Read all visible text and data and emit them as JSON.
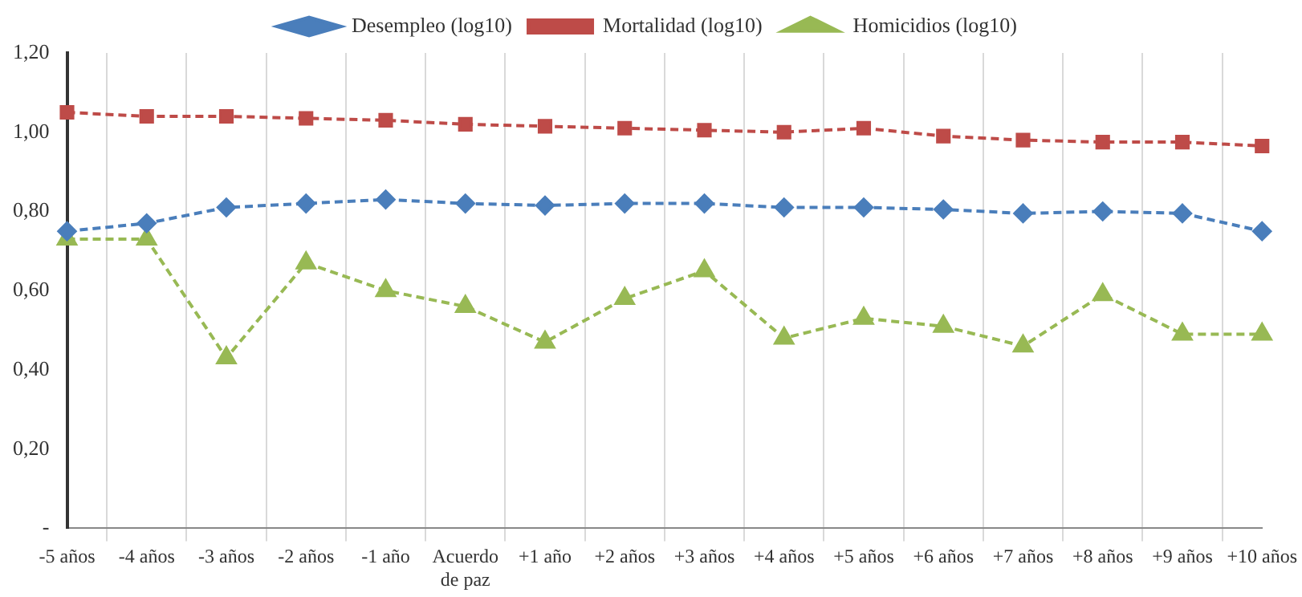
{
  "chart_data": {
    "type": "line",
    "categories": [
      "-5 años",
      "-4 años",
      "-3 años",
      "-2 años",
      "-1 año",
      "Acuerdo de paz",
      "+1 año",
      "+2 años",
      "+3 años",
      "+4 años",
      "+5 años",
      "+6 años",
      "+7 años",
      "+8 años",
      "+9 años",
      "+10 años"
    ],
    "series": [
      {
        "name": "Desempleo (log10)",
        "color": "#4a7ebb",
        "marker": "diamond",
        "values": [
          0.75,
          0.77,
          0.81,
          0.82,
          0.83,
          0.82,
          0.815,
          0.82,
          0.82,
          0.81,
          0.81,
          0.805,
          0.795,
          0.8,
          0.795,
          0.75
        ]
      },
      {
        "name": "Mortalidad (log10)",
        "color": "#be4b48",
        "marker": "square",
        "values": [
          1.05,
          1.04,
          1.04,
          1.035,
          1.03,
          1.02,
          1.015,
          1.01,
          1.005,
          1.0,
          1.01,
          0.99,
          0.98,
          0.975,
          0.975,
          0.965
        ]
      },
      {
        "name": "Homicidios (log10)",
        "color": "#98b954",
        "marker": "triangle",
        "values": [
          0.73,
          0.73,
          0.43,
          0.67,
          0.6,
          0.56,
          0.47,
          0.58,
          0.65,
          0.48,
          0.53,
          0.51,
          0.46,
          0.59,
          0.49,
          0.49
        ]
      }
    ],
    "ylim": [
      0,
      1.2
    ],
    "yticks": [
      {
        "value": 0,
        "label": "-"
      },
      {
        "value": 0.2,
        "label": "0,20"
      },
      {
        "value": 0.4,
        "label": "0,40"
      },
      {
        "value": 0.6,
        "label": "0,60"
      },
      {
        "value": 0.8,
        "label": "0,80"
      },
      {
        "value": 1.0,
        "label": "1,00"
      },
      {
        "value": 1.2,
        "label": "1,20"
      }
    ],
    "grid": "x",
    "legend": "top",
    "line_style": "dashed"
  }
}
